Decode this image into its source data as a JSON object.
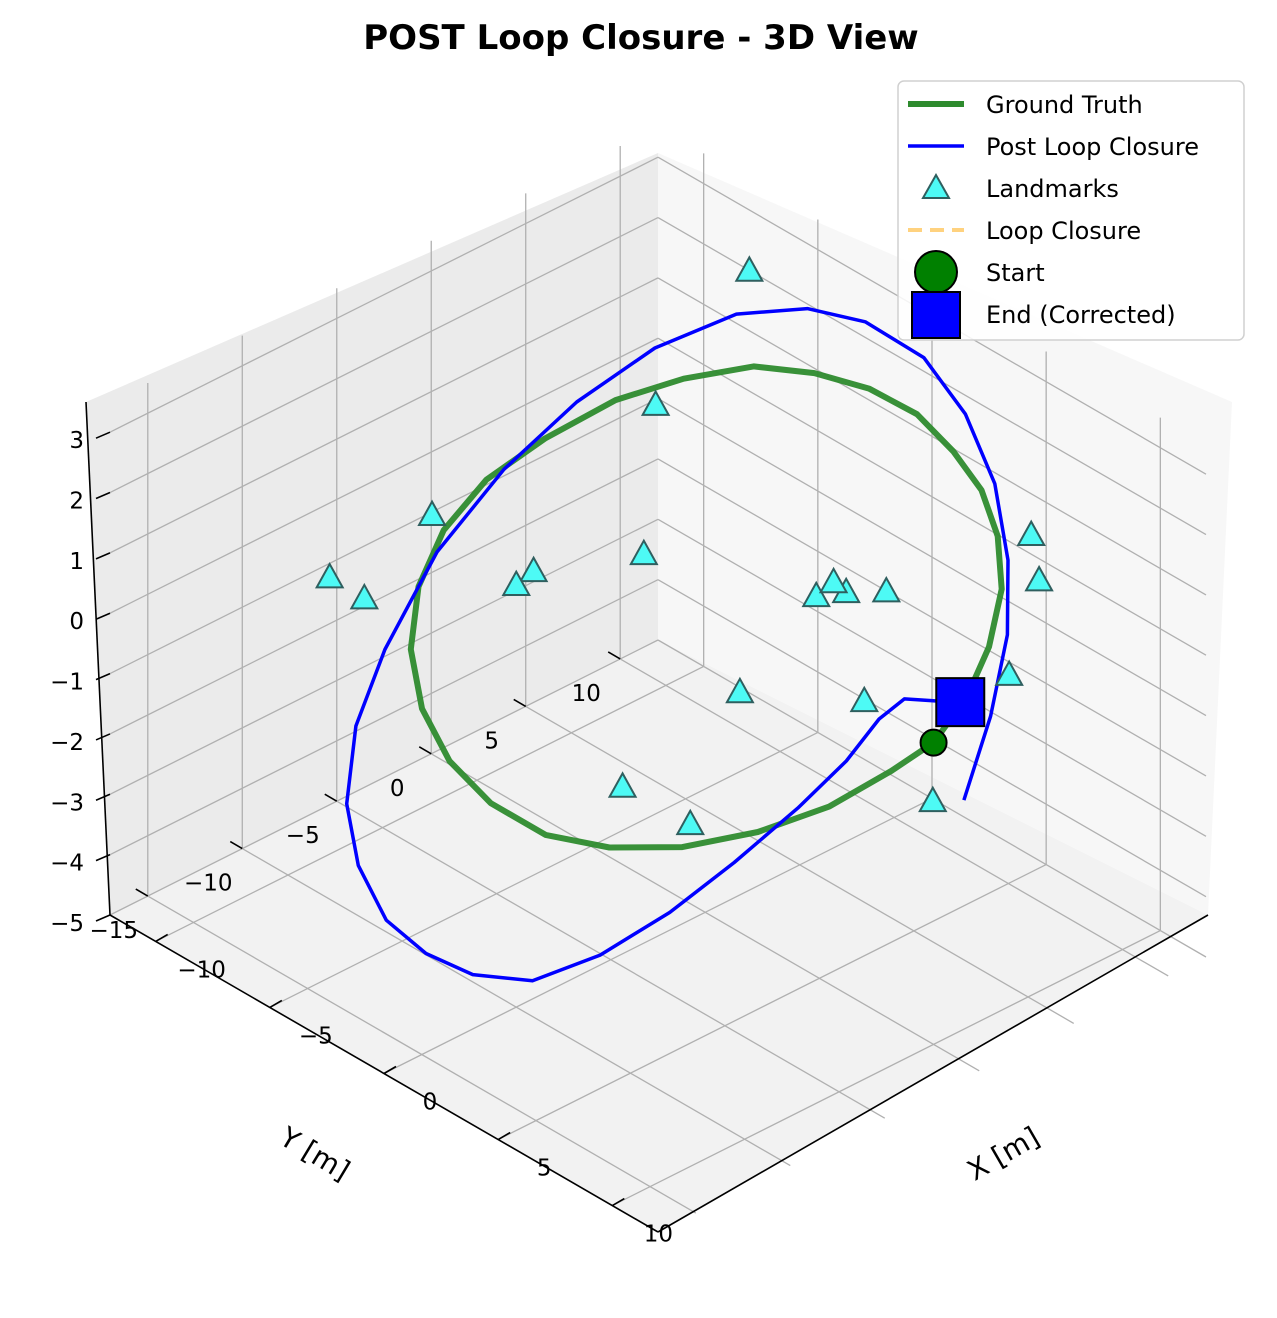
{
  "chart_data": {
    "type": "line",
    "projection": "3d",
    "title": "POST Loop Closure - 3D View",
    "xlabel": "X [m]",
    "ylabel": "Y [m]",
    "zlabel": "",
    "xlim": [
      -12,
      12
    ],
    "ylim": [
      -17,
      12
    ],
    "zlim": [
      -5,
      3.5
    ],
    "x_ticks": [
      "−10",
      "−5",
      "0",
      "5",
      "10"
    ],
    "y_ticks": [
      "−15",
      "−10",
      "−5",
      "0",
      "5",
      "10"
    ],
    "z_ticks": [
      "3",
      "2",
      "1",
      "0",
      "−1",
      "−2",
      "−3",
      "−4",
      "−5"
    ],
    "grid": true,
    "legend_position": "top-right",
    "colors": {
      "ground_truth": "#2e8b2e",
      "post_loop_closure": "#0000ff",
      "landmarks": "#4dfaf5",
      "loop_closure": "#ffd27f",
      "start": "#008000",
      "end": "#0000ff"
    },
    "series": [
      {
        "name": "Ground Truth",
        "points": [
          [
            10,
            0,
            0
          ],
          [
            9.8,
            2,
            0.4
          ],
          [
            9.2,
            3.9,
            0.8
          ],
          [
            8.1,
            5.9,
            1.2
          ],
          [
            6.6,
            7.5,
            1.5
          ],
          [
            4.9,
            8.7,
            1.7
          ],
          [
            3.0,
            9.5,
            1.8
          ],
          [
            1.0,
            10,
            1.9
          ],
          [
            -1.0,
            9.9,
            1.9
          ],
          [
            -3.0,
            9.4,
            1.8
          ],
          [
            -5.0,
            8.6,
            1.6
          ],
          [
            -6.9,
            7.2,
            1.2
          ],
          [
            -8.4,
            5.4,
            0.8
          ],
          [
            -9.5,
            3.0,
            0.3
          ],
          [
            -10,
            0.5,
            -0.1
          ],
          [
            -9.8,
            -2,
            -0.5
          ],
          [
            -9.0,
            -4.3,
            -0.9
          ],
          [
            -7.6,
            -6.4,
            -1.3
          ],
          [
            -5.7,
            -8.1,
            -1.6
          ],
          [
            -3.5,
            -9.3,
            -1.8
          ],
          [
            -1.2,
            -9.9,
            -1.9
          ],
          [
            1.2,
            -9.9,
            -1.9
          ],
          [
            3.5,
            -9.3,
            -1.7
          ],
          [
            5.7,
            -8.1,
            -1.4
          ],
          [
            7.6,
            -6.4,
            -1.0
          ],
          [
            9.0,
            -4.3,
            -0.6
          ],
          [
            9.8,
            -2,
            -0.2
          ],
          [
            10,
            0,
            0
          ]
        ]
      },
      {
        "name": "Post Loop Closure",
        "points": [
          [
            10.5,
            1,
            -1
          ],
          [
            9.6,
            3.5,
            -0.2
          ],
          [
            8.6,
            5.6,
            0.6
          ],
          [
            7.3,
            7.2,
            1.3
          ],
          [
            5.4,
            8.8,
            1.9
          ],
          [
            3.2,
            9.9,
            2.4
          ],
          [
            0.8,
            10.6,
            2.7
          ],
          [
            -1.6,
            10.4,
            2.8
          ],
          [
            -3.8,
            10,
            2.6
          ],
          [
            -6.0,
            8.9,
            2.2
          ],
          [
            -8.0,
            7.0,
            1.5
          ],
          [
            -9.6,
            4.8,
            0.6
          ],
          [
            -10.8,
            2.4,
            -0.4
          ],
          [
            -11.5,
            -0.3,
            -1.5
          ],
          [
            -11.3,
            -3.3,
            -2.6
          ],
          [
            -10.5,
            -5.8,
            -3.3
          ],
          [
            -9.0,
            -8.1,
            -3.9
          ],
          [
            -7.0,
            -9.9,
            -4.2
          ],
          [
            -4.7,
            -11.2,
            -4.4
          ],
          [
            -2.3,
            -12,
            -4.3
          ],
          [
            0,
            -12.3,
            -4.1
          ],
          [
            2.2,
            -11.8,
            -3.8
          ],
          [
            4.0,
            -10.4,
            -3.2
          ],
          [
            5.4,
            -8.4,
            -2.5
          ],
          [
            6.4,
            -6.2,
            -1.8
          ],
          [
            7.2,
            -3.8,
            -1.1
          ],
          [
            7.5,
            -1.6,
            -0.6
          ],
          [
            7.2,
            0.5,
            -0.3
          ],
          [
            6.9,
            2.2,
            -0.3
          ],
          [
            7.0,
            4.0,
            -0.6
          ],
          [
            6.7,
            5.4,
            -0.9
          ]
        ]
      },
      {
        "name": "Landmarks",
        "points": [
          [
            -2,
            12,
            -2
          ],
          [
            6,
            10,
            1
          ],
          [
            -8,
            12,
            2
          ],
          [
            1,
            -2,
            -3
          ],
          [
            -6,
            4,
            -1
          ],
          [
            9,
            -5,
            3
          ],
          [
            -3,
            1,
            2.6
          ],
          [
            8,
            8,
            1
          ],
          [
            -10,
            3,
            -2
          ],
          [
            3,
            -8,
            -1
          ],
          [
            -7,
            -6,
            1
          ],
          [
            5,
            6,
            -3
          ],
          [
            0,
            -10,
            2
          ],
          [
            -9,
            -9,
            0
          ],
          [
            7,
            -1,
            2
          ],
          [
            2,
            6,
            -2
          ],
          [
            -5,
            -12,
            1
          ],
          [
            4,
            -3,
            0
          ],
          [
            -1,
            8,
            -1
          ],
          [
            10,
            4,
            0.5
          ]
        ]
      }
    ],
    "markers": {
      "start": {
        "label": "Start",
        "point": [
          10,
          0,
          0
        ]
      },
      "end": {
        "label": "End (Corrected)",
        "point": [
          6.7,
          5.4,
          -0.9
        ]
      }
    },
    "legend": [
      {
        "label": "Ground Truth",
        "kind": "line"
      },
      {
        "label": "Post Loop Closure",
        "kind": "line"
      },
      {
        "label": "Landmarks",
        "kind": "triangle"
      },
      {
        "label": "Loop Closure",
        "kind": "dashed"
      },
      {
        "label": "Start",
        "kind": "circle"
      },
      {
        "label": "End (Corrected)",
        "kind": "square"
      }
    ]
  }
}
